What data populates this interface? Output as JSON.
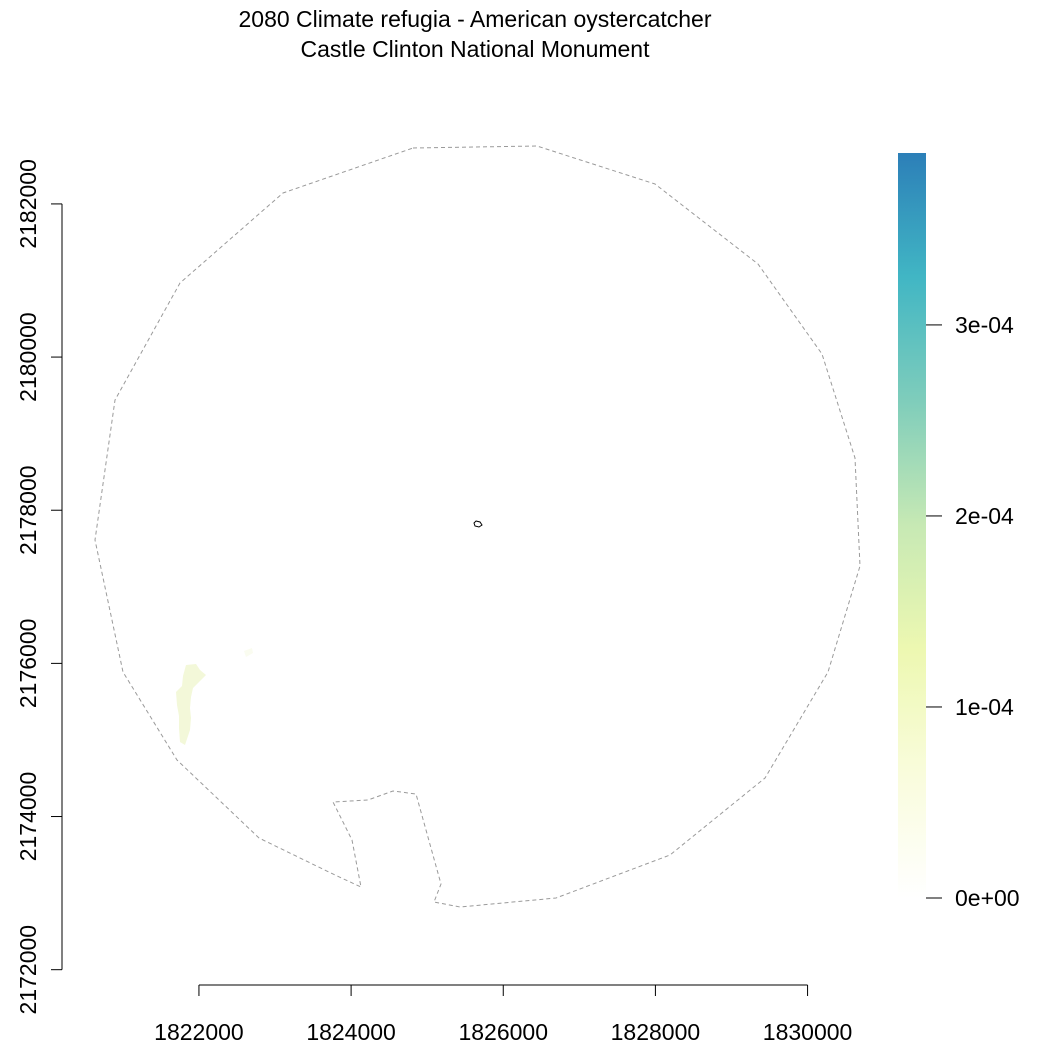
{
  "title": {
    "line1": "2080 Climate refugia - American oystercatcher",
    "line2": "Castle Clinton National Monument"
  },
  "map": {
    "x_axis": {
      "range": [
        1820200,
        1830400
      ],
      "ticks": [
        1822000,
        1824000,
        1826000,
        1828000,
        1830000
      ],
      "tick_labels": [
        "1822000",
        "1824000",
        "1826000",
        "1828000",
        "1830000"
      ]
    },
    "y_axis": {
      "range": [
        2171800,
        2182900
      ],
      "ticks": [
        2172000,
        2174000,
        2176000,
        2178000,
        2180000,
        2182000
      ],
      "tick_labels": [
        "2172000",
        "2174000",
        "2176000",
        "2178000",
        "2180000",
        "2182000"
      ]
    },
    "buffer_outline": {
      "style": "dashed",
      "color": "#9a9a9a"
    },
    "park_boundary": {
      "center": [
        1825650,
        2177880
      ],
      "color": "#000000"
    },
    "refugia_patch": {
      "value_approx": 2e-05,
      "color": "#f3f8d9"
    }
  },
  "legend": {
    "min": 0,
    "max": 0.00039,
    "ticks": [
      0,
      0.0001,
      0.0002,
      0.0003
    ],
    "tick_labels": [
      "0e+00",
      "1e-04",
      "2e-04",
      "3e-04"
    ],
    "colors": [
      "#ffffff",
      "#f9fcdc",
      "#edf8b1",
      "#c7e9b4",
      "#7fcdbb",
      "#41b6c4",
      "#2c7fb8"
    ]
  }
}
